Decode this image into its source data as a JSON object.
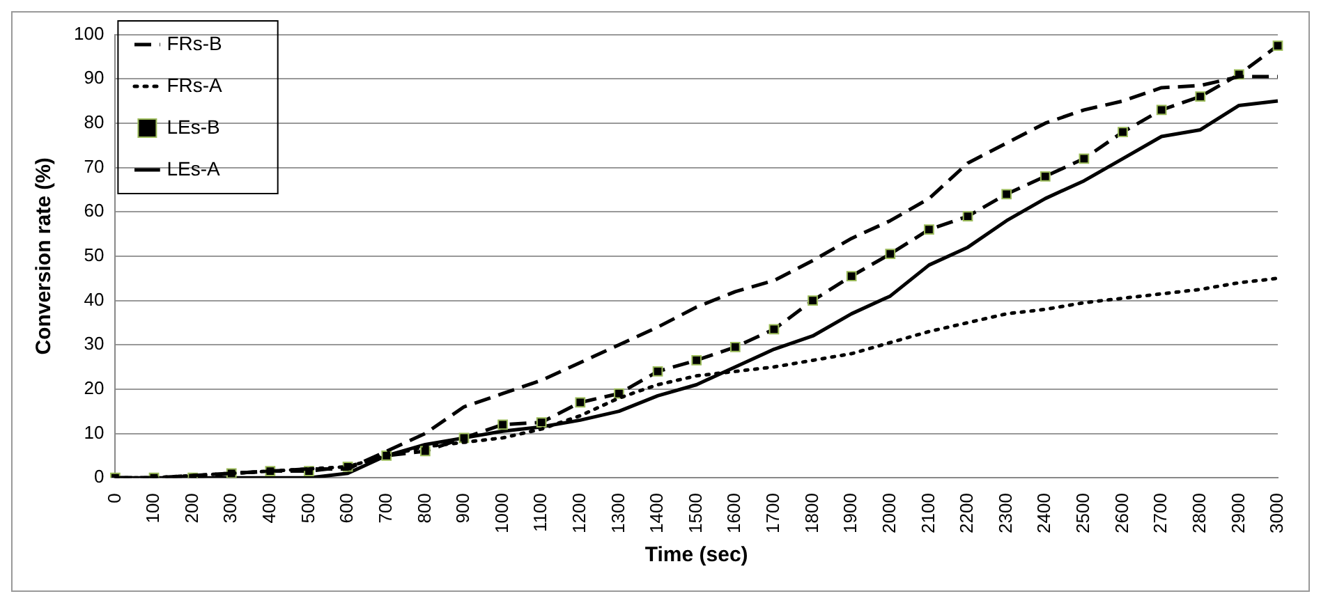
{
  "chart_data": {
    "type": "line",
    "xlabel": "Time (sec)",
    "ylabel": "Conversion rate (%)",
    "categories": [
      "0",
      "100",
      "200",
      "300",
      "400",
      "500",
      "600",
      "700",
      "800",
      "900",
      "1000",
      "1100",
      "1200",
      "1300",
      "1400",
      "1500",
      "1600",
      "1700",
      "1800",
      "1900",
      "2000",
      "2100",
      "2200",
      "2300",
      "2400",
      "2500",
      "2600",
      "2700",
      "2800",
      "2900",
      "3000"
    ],
    "ylim": [
      0,
      100
    ],
    "yticks": [
      0,
      10,
      20,
      30,
      40,
      50,
      60,
      70,
      80,
      90,
      100
    ],
    "grid": "y",
    "legend": "top left",
    "series": [
      {
        "name": "FRs-B",
        "color": "#000000",
        "line_style": "dashed",
        "marker": "none",
        "values": [
          0,
          0,
          0.5,
          1,
          1.5,
          2,
          2,
          6,
          10,
          16,
          19,
          22,
          26,
          30,
          34,
          38.5,
          42,
          44.5,
          49,
          54,
          58,
          63,
          71,
          75.5,
          80,
          83,
          85,
          88,
          88.5,
          90.5,
          90.5
        ]
      },
      {
        "name": "FRs-A",
        "color": "#000000",
        "line_style": "dotted",
        "marker": "none",
        "values": [
          0,
          0,
          0.5,
          1,
          1.5,
          2,
          2.5,
          5,
          7,
          8,
          9,
          11,
          14,
          18,
          21,
          23,
          24,
          25,
          26.5,
          28,
          30.5,
          33,
          35,
          37,
          38,
          39.5,
          40.5,
          41.5,
          42.5,
          44,
          45
        ]
      },
      {
        "name": "LEs-B",
        "color": "#000000",
        "line_style": "dashed",
        "marker": "square",
        "values": [
          0,
          0,
          0,
          1,
          1.5,
          1.5,
          2.5,
          5,
          6,
          9,
          12,
          12.5,
          17,
          19,
          24,
          26.5,
          29.5,
          33.5,
          40,
          45.5,
          50.5,
          56,
          59,
          64,
          68,
          72,
          78,
          83,
          86,
          91,
          97.5
        ]
      },
      {
        "name": "LEs-A",
        "color": "#000000",
        "line_style": "solid",
        "marker": "none",
        "values": [
          0,
          0,
          0,
          0,
          0,
          0,
          1,
          5,
          7.5,
          9,
          10.5,
          11.5,
          13,
          15,
          18.5,
          21,
          25,
          29,
          32,
          37,
          41,
          48,
          52,
          58,
          63,
          67,
          72,
          77,
          78.5,
          84,
          85
        ]
      }
    ]
  }
}
